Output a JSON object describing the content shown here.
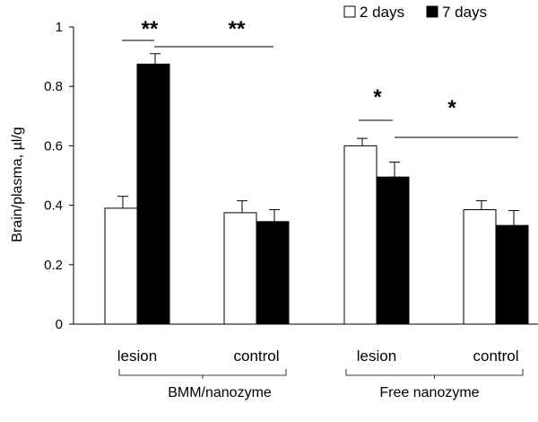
{
  "chart_data": {
    "type": "bar",
    "ylabel": "Brain/plasma, µl/g",
    "ylim": [
      0,
      1
    ],
    "yticks": [
      "0",
      "0.2",
      "0.4",
      "0.6",
      "0.8",
      "1"
    ],
    "grid": false,
    "legend_position": "top-right",
    "categories": [
      "lesion",
      "control",
      "lesion",
      "control"
    ],
    "groups": [
      {
        "label": "BMM/nanozyme",
        "categories": [
          0,
          1
        ]
      },
      {
        "label": "Free nanozyme",
        "categories": [
          2,
          3
        ]
      }
    ],
    "series": [
      {
        "name": "2 days",
        "color": "#ffffff",
        "values": [
          0.39,
          0.375,
          0.6,
          0.385
        ],
        "errors": [
          0.04,
          0.04,
          0.025,
          0.03
        ]
      },
      {
        "name": "7 days",
        "color": "#000000",
        "values": [
          0.875,
          0.345,
          0.495,
          0.332
        ],
        "errors": [
          0.035,
          0.04,
          0.05,
          0.05
        ]
      }
    ],
    "significance": [
      {
        "label": "**",
        "between": "2 days vs 7 days, BMM/nanozyme lesion"
      },
      {
        "label": "**",
        "between": "BMM/nanozyme lesion 7 days vs control"
      },
      {
        "label": "*",
        "between": "2 days vs 7 days, Free nanozyme lesion"
      },
      {
        "label": "*",
        "between": "Free nanozyme lesion vs control"
      }
    ]
  }
}
